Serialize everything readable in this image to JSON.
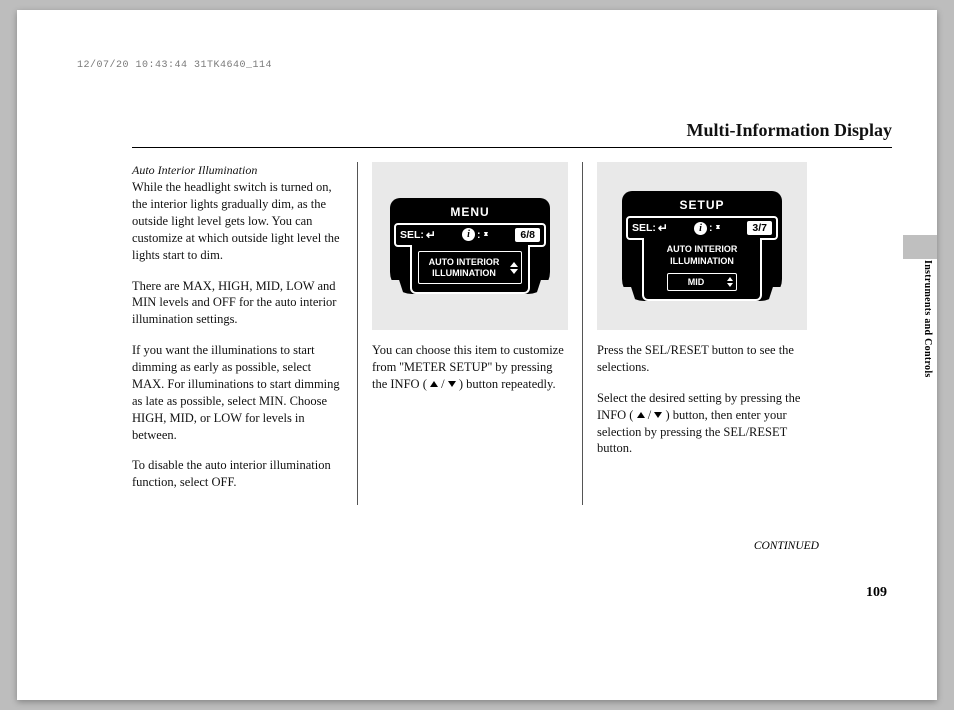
{
  "header_stamp": "12/07/20 10:43:44 31TK4640_114",
  "page_title": "Multi-Information Display",
  "side_tab": "Instruments and Controls",
  "continued": "CONTINUED",
  "page_number": "109",
  "col1": {
    "subhead": "Auto Interior Illumination",
    "p1": "While the headlight switch is turned on, the interior lights gradually dim, as the outside light level gets low. You can customize at which outside light level the lights start to dim.",
    "p2": "There are MAX, HIGH, MID, LOW and MIN levels and OFF for the auto interior illumination settings.",
    "p3": "If you want the illuminations to start dimming as early as possible, select MAX. For illuminations to start dimming as late as possible, select MIN. Choose HIGH, MID, or LOW for levels in between.",
    "p4": "To disable the auto interior illumination function, select OFF."
  },
  "col2": {
    "p1a": "You can choose this item to customize from ''METER SETUP'' by pressing the INFO (",
    "p1b": ") button repeatedly."
  },
  "col3": {
    "p1": "Press the SEL/RESET button to see the selections.",
    "p2a": "Select the desired setting by pressing the INFO (",
    "p2b": ") button, then enter your selection by pressing the SEL/RESET button."
  },
  "lcd_menu": {
    "title": "MENU",
    "sel_label": "SEL:",
    "counter": "6/8",
    "box_line1": "AUTO INTERIOR",
    "box_line2": "ILLUMINATION",
    "colors": {
      "bg": "#000000",
      "fg": "#ffffff",
      "panel_bg": "#e9e9e9"
    }
  },
  "lcd_setup": {
    "title": "SETUP",
    "sel_label": "SEL:",
    "counter": "3/7",
    "body_line1": "AUTO INTERIOR",
    "body_line2": "ILLUMINATION",
    "select_value": "MID",
    "colors": {
      "bg": "#000000",
      "fg": "#ffffff",
      "panel_bg": "#e9e9e9"
    }
  }
}
